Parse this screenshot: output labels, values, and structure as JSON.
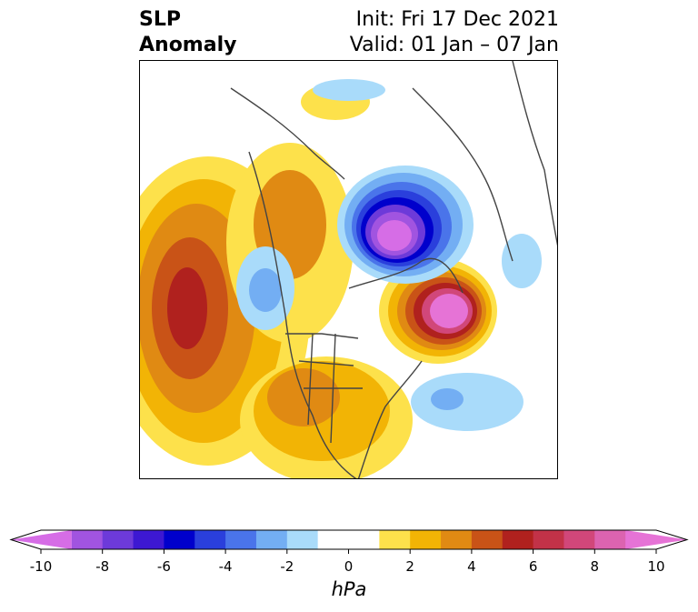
{
  "header": {
    "title_line1": "SLP",
    "title_line2": "Anomaly",
    "init": "Init: Fri 17 Dec 2021",
    "valid": "Valid: 01 Jan – 07 Jan"
  },
  "colorbar": {
    "units": "hPa",
    "ticks": [
      "-10",
      "-8",
      "-6",
      "-4",
      "-2",
      "0",
      "2",
      "4",
      "6",
      "8",
      "10"
    ],
    "colors": [
      "#d66de6",
      "#a154e0",
      "#6d3ad9",
      "#3d18d2",
      "#0000cc",
      "#2a3fdc",
      "#4a74ea",
      "#73aef3",
      "#a9dbfa",
      "#ffffff",
      "#ffffff",
      "#fde14b",
      "#f2b405",
      "#e08a13",
      "#c95317",
      "#b0211e",
      "#c23248",
      "#d1477a",
      "#dc63b0",
      "#e673d6"
    ]
  },
  "map": {
    "features": [
      "high-pressure-anomaly-north-pacific",
      "low-pressure-anomaly-polar",
      "high-pressure-anomaly-north-atlantic",
      "high-pressure-anomaly-north-america",
      "low-pressure-anomaly-east-pacific",
      "low-pressure-anomaly-subtropical-atlantic"
    ]
  }
}
